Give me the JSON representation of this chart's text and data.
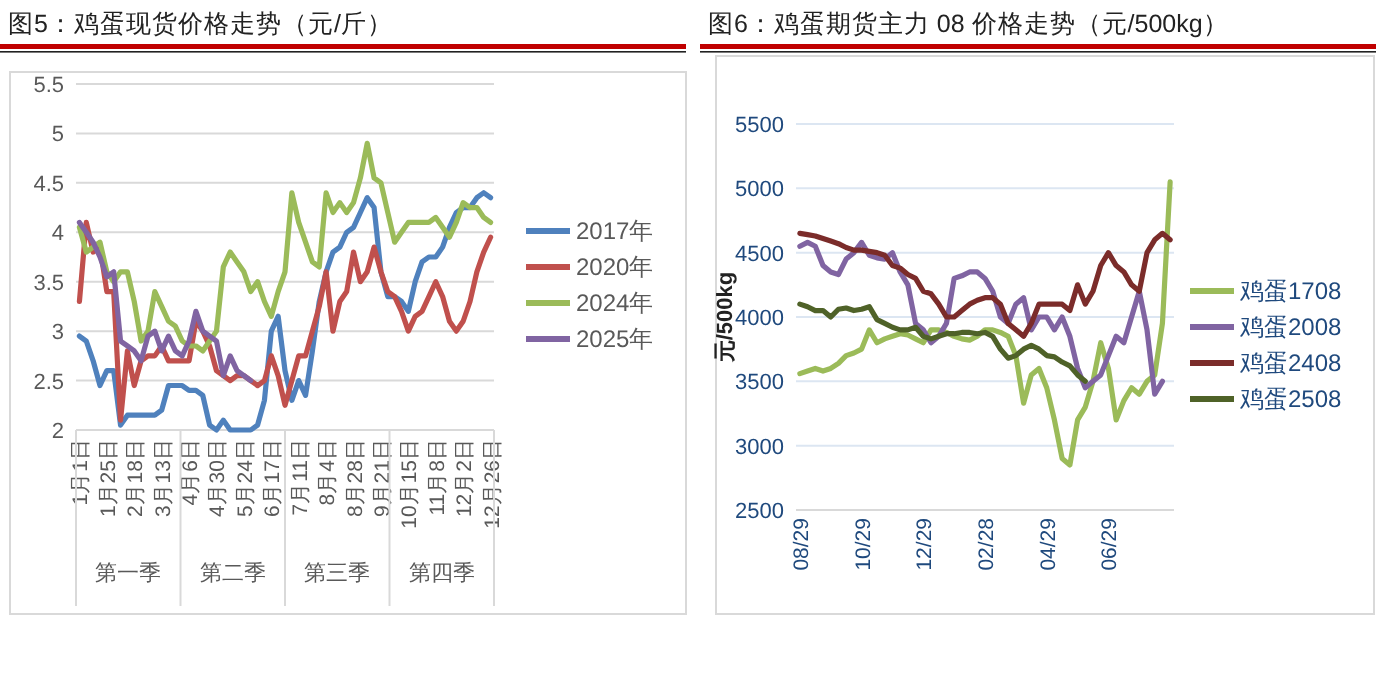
{
  "chart_data": [
    {
      "type": "line",
      "title": "图5：鸡蛋现货价格走势（元/斤）",
      "categories": [
        "1月1日",
        null,
        null,
        null,
        "1月25日",
        null,
        null,
        null,
        "2月18日",
        null,
        null,
        null,
        "3月13日",
        null,
        null,
        null,
        "4月6日",
        null,
        null,
        null,
        "4月30日",
        null,
        null,
        null,
        "5月24日",
        null,
        null,
        null,
        "6月17日",
        null,
        null,
        null,
        "7月11日",
        null,
        null,
        null,
        "8月4日",
        null,
        null,
        null,
        "8月28日",
        null,
        null,
        null,
        "9月21日",
        null,
        null,
        null,
        "10月15日",
        null,
        null,
        null,
        "11月8日",
        null,
        null,
        null,
        "12月2日",
        null,
        null,
        null,
        "12月26日"
      ],
      "series": [
        {
          "name": "2017年",
          "color": "#4f81bd",
          "values": [
            2.95,
            2.9,
            2.7,
            2.45,
            2.6,
            2.6,
            2.05,
            2.15,
            2.15,
            2.15,
            2.15,
            2.15,
            2.2,
            2.45,
            2.45,
            2.45,
            2.4,
            2.4,
            2.35,
            2.05,
            2.0,
            2.1,
            2.0,
            2.0,
            2.0,
            2.0,
            2.05,
            2.3,
            3.0,
            3.15,
            2.6,
            2.3,
            2.5,
            2.35,
            2.8,
            3.3,
            3.6,
            3.8,
            3.85,
            4.0,
            4.05,
            4.2,
            4.35,
            4.25,
            3.6,
            3.35,
            3.35,
            3.3,
            3.2,
            3.5,
            3.7,
            3.75,
            3.75,
            3.85,
            4.05,
            4.2,
            4.25,
            4.25,
            4.35,
            4.4,
            4.35
          ]
        },
        {
          "name": "2020年",
          "color": "#c0504d",
          "values": [
            3.3,
            4.1,
            3.8,
            3.85,
            3.4,
            3.4,
            2.1,
            2.8,
            2.45,
            2.7,
            2.75,
            2.75,
            2.85,
            2.7,
            2.7,
            2.7,
            2.7,
            3.1,
            3.0,
            2.85,
            2.6,
            2.55,
            2.5,
            2.55,
            2.55,
            2.5,
            2.45,
            2.5,
            2.75,
            2.55,
            2.25,
            2.5,
            2.75,
            2.75,
            3.0,
            3.25,
            3.6,
            3.0,
            3.3,
            3.4,
            3.8,
            3.5,
            3.6,
            3.85,
            3.6,
            3.4,
            3.35,
            3.2,
            3.0,
            3.15,
            3.2,
            3.35,
            3.5,
            3.35,
            3.1,
            3.0,
            3.1,
            3.3,
            3.6,
            3.8,
            3.95
          ]
        },
        {
          "name": "2024年",
          "color": "#9bbb59",
          "values": [
            4.05,
            3.8,
            3.85,
            3.9,
            3.6,
            3.5,
            3.6,
            3.6,
            3.3,
            2.9,
            3.0,
            3.4,
            3.25,
            3.1,
            3.05,
            2.9,
            2.85,
            2.85,
            2.8,
            2.9,
            3.0,
            3.65,
            3.8,
            3.7,
            3.6,
            3.4,
            3.5,
            3.3,
            3.15,
            3.4,
            3.6,
            4.4,
            4.1,
            3.9,
            3.7,
            3.65,
            4.4,
            4.2,
            4.3,
            4.2,
            4.3,
            4.55,
            4.9,
            4.55,
            4.5,
            4.2,
            3.9,
            4.0,
            4.1,
            4.1,
            4.1,
            4.1,
            4.15,
            4.05,
            3.95,
            4.1,
            4.3,
            4.25,
            4.25,
            4.15,
            4.1
          ]
        },
        {
          "name": "2025年",
          "color": "#8064a2",
          "values": [
            4.1,
            4.0,
            3.9,
            3.75,
            3.55,
            3.6,
            2.9,
            2.85,
            2.8,
            2.7,
            2.95,
            3.0,
            2.8,
            2.95,
            2.8,
            2.75,
            2.9,
            3.2,
            3.0,
            2.95,
            2.9,
            2.55,
            2.75,
            2.6,
            2.55,
            2.5,
            null,
            null,
            null,
            null,
            null,
            null,
            null,
            null,
            null,
            null,
            null,
            null,
            null,
            null,
            null,
            null,
            null,
            null,
            null,
            null,
            null,
            null,
            null,
            null,
            null,
            null,
            null,
            null,
            null,
            null,
            null,
            null,
            null,
            null,
            null
          ]
        }
      ],
      "ylim": [
        2,
        5.5
      ],
      "yticks": [
        2,
        2.5,
        3,
        3.5,
        4,
        4.5,
        5,
        5.5
      ],
      "grid": "y",
      "legend": "right",
      "annotations": [
        "第一季",
        "第二季",
        "第三季",
        "第四季"
      ]
    },
    {
      "type": "line",
      "title": "图6：鸡蛋期货主力 08 价格走势（元/500kg）",
      "ylabel": "元/500kg",
      "categories": [
        "08/29",
        null,
        null,
        null,
        null,
        null,
        null,
        null,
        "10/29",
        null,
        null,
        null,
        null,
        null,
        null,
        null,
        "12/29",
        null,
        null,
        null,
        null,
        null,
        null,
        null,
        "02/28",
        null,
        null,
        null,
        null,
        null,
        null,
        null,
        "04/29",
        null,
        null,
        null,
        null,
        null,
        null,
        null,
        "06/29",
        null,
        null,
        null,
        null,
        null,
        null,
        null,
        null
      ],
      "series": [
        {
          "name": "鸡蛋1708",
          "color": "#9bbb59",
          "values": [
            3560,
            3580,
            3600,
            3580,
            3600,
            3640,
            3700,
            3720,
            3750,
            3900,
            3800,
            3830,
            3850,
            3870,
            3860,
            3830,
            3800,
            3900,
            3900,
            3880,
            3850,
            3830,
            3820,
            3850,
            3900,
            3900,
            3880,
            3850,
            3700,
            3330,
            3550,
            3600,
            3450,
            3200,
            2900,
            2850,
            3200,
            3300,
            3500,
            3800,
            3600,
            3200,
            3350,
            3450,
            3400,
            3500,
            3550,
            3950,
            5050
          ]
        },
        {
          "name": "鸡蛋2008",
          "color": "#8064a2",
          "values": [
            4550,
            4580,
            4550,
            4400,
            4350,
            4330,
            4450,
            4500,
            4580,
            4480,
            4460,
            4450,
            4500,
            4350,
            4250,
            3950,
            3900,
            3800,
            3850,
            3950,
            4300,
            4320,
            4350,
            4350,
            4300,
            4200,
            4000,
            3950,
            4100,
            4150,
            3900,
            4000,
            4000,
            3900,
            4000,
            3850,
            3600,
            3450,
            3500,
            3550,
            3700,
            3850,
            3800,
            4000,
            4200,
            3900,
            3400,
            3500,
            null
          ]
        },
        {
          "name": "鸡蛋2408",
          "color": "#7b2c2a",
          "values": [
            4650,
            4640,
            4630,
            4610,
            4590,
            4570,
            4540,
            4520,
            4520,
            4510,
            4500,
            4480,
            4400,
            4380,
            4330,
            4300,
            4200,
            4180,
            4100,
            4000,
            4000,
            4050,
            4100,
            4130,
            4150,
            4150,
            4100,
            3950,
            3900,
            3850,
            3950,
            4100,
            4100,
            4100,
            4100,
            4050,
            4250,
            4100,
            4200,
            4400,
            4500,
            4400,
            4350,
            4250,
            4200,
            4500,
            4600,
            4650,
            4600
          ]
        },
        {
          "name": "鸡蛋2508",
          "color": "#4f6228",
          "values": [
            4100,
            4080,
            4050,
            4050,
            4000,
            4060,
            4070,
            4050,
            4060,
            4080,
            3980,
            3950,
            3920,
            3900,
            3900,
            3920,
            3850,
            3830,
            3850,
            3870,
            3870,
            3880,
            3880,
            3870,
            3880,
            3850,
            3750,
            3680,
            3700,
            3750,
            3780,
            3750,
            3700,
            3690,
            3650,
            3620,
            3550,
            3500,
            null,
            null,
            null,
            null,
            null,
            null,
            null,
            null,
            null,
            null,
            null
          ]
        }
      ],
      "ylim": [
        2500,
        5500
      ],
      "yticks": [
        2500,
        3000,
        3500,
        4000,
        4500,
        5000,
        5500
      ],
      "grid": "y",
      "legend": "right"
    }
  ]
}
